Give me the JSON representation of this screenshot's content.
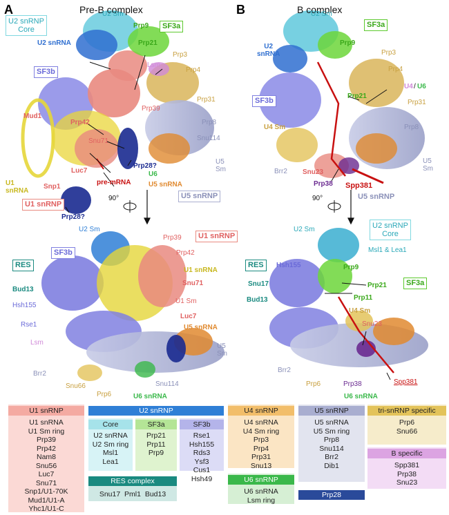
{
  "panels": {
    "a": {
      "letter": "A",
      "title": "Pre-B complex"
    },
    "b": {
      "letter": "B",
      "title": "B complex"
    }
  },
  "colors": {
    "u1": "#e98a80",
    "u2": "#2f7fd6",
    "u2core": "#7fd8e0",
    "sf3a": "#5cc92d",
    "sf3b": "#8080e0",
    "res": "#1a8a80",
    "u4": "#e0a030",
    "u5": "#a9aed0",
    "u6": "#3ab84a",
    "tri": "#e3c35a",
    "bspec": "#d07ad8",
    "prp28": "#2a4a9a",
    "u1rna": "#e5d63a",
    "mrna": "#c81010"
  },
  "labels_a_top": {
    "u2_core": "U2 snRNP\nCore",
    "u2_sm": "U2 Sm",
    "u2_snrna": "U2 snRNA",
    "prp9": "Prp9",
    "sf3a": "SF3a",
    "prp21": "Prp21",
    "prp3": "Prp3",
    "lsm": "Lsm",
    "sf3b": "SF3b",
    "prp4": "Prp4",
    "prp31": "Prp31",
    "prp39": "Prp39",
    "mud1": "Mud1",
    "prp42": "Prp42",
    "prp8": "Prp8",
    "snu71": "Snu71",
    "snu114": "Snu114",
    "prp28q1": "Prp28?",
    "luc7": "Luc7",
    "u5sm": "U5\nSm",
    "u6": "U6",
    "u1snrna": "U1\nsnRNA",
    "snp1": "Snp1",
    "premrna": "pre-mRNA",
    "u5snrna": "U5 snRNA",
    "u1snrnp": "U1 snRNP",
    "rot": "90°",
    "u5snrnp": "U5 snRNP",
    "prp28q2": "Prp28?"
  },
  "labels_a_bot": {
    "u2sm": "U2 Sm",
    "prp39": "Prp39",
    "u1snrnp": "U1 snRNP",
    "sf3b": "SF3b",
    "prp42": "Prp42",
    "res": "RES",
    "u1snrna": "U1 snRNA",
    "bud13": "Bud13",
    "snu71": "Snu71",
    "hsh155": "Hsh155",
    "u1sm": "U1 Sm",
    "rse1": "Rse1",
    "luc7": "Luc7",
    "u5snrna": "U5 snRNA",
    "lsm": "Lsm",
    "u5sm": "U5\nSm",
    "brr2": "Brr2",
    "snu66": "Snu66",
    "prp6": "Prp6",
    "snu114": "Snu114",
    "u6snrna": "U6 snRNA"
  },
  "labels_b_top": {
    "u2sm": "U2 Sm",
    "sf3a": "SF3a",
    "u2snrna": "U2\nsnRNA",
    "prp9": "Prp9",
    "prp3": "Prp3",
    "prp4": "Prp4",
    "u4": "U4",
    "slash": "/",
    "u6": "U6",
    "sf3b": "SF3b",
    "prp21": "Prp21",
    "prp31": "Prp31",
    "u4sm": "U4 Sm",
    "prp8": "Prp8",
    "u5sm": "U5\nSm",
    "brr2": "Brr2",
    "snu23": "Snu23",
    "prp38": "Prp38",
    "spp381": "Spp381",
    "rot": "90°",
    "u5snrnp": "U5 snRNP"
  },
  "labels_b_bot": {
    "u2sm": "U2 Sm",
    "u2core": "U2 snRNP\nCore",
    "msl1": "Msl1 & Lea1",
    "res": "RES",
    "hsh155": "Hsh155",
    "prp9": "Prp9",
    "snu17": "Snu17",
    "prp21": "Prp21",
    "sf3a": "SF3a",
    "bud13": "Bud13",
    "prp11": "Prp11",
    "u4sm": "U4 Sm",
    "snu23": "Snu23",
    "brr2": "Brr2",
    "prp6": "Prp6",
    "prp38": "Prp38",
    "spp381": "Spp381",
    "u6snrna": "U6 snRNA"
  },
  "legend": {
    "u1": {
      "header": "U1 snRNP",
      "items": [
        "U1 snRNA",
        "U1 Sm ring",
        "Prp39",
        "Prp42",
        "Nam8",
        "Snu56",
        "Luc7",
        "Snu71",
        "Snp1/U1-70K",
        "Mud1/U1-A",
        "Yhc1/U1-C"
      ]
    },
    "u2": {
      "header": "U2 snRNP"
    },
    "core": {
      "header": "Core",
      "items": [
        "U2 snRNA",
        "U2 Sm ring",
        "Msl1",
        "Lea1"
      ]
    },
    "sf3a": {
      "header": "SF3a",
      "items": [
        "Prp21",
        "Prp11",
        "Prp9"
      ]
    },
    "sf3b": {
      "header": "SF3b",
      "items": [
        "Rse1",
        "Hsh155",
        "Rds3",
        "Ysf3",
        "Cus1",
        "Hsh49"
      ]
    },
    "res": {
      "header": "RES complex",
      "items": [
        "Snu17",
        "Pml1",
        "Bud13"
      ]
    },
    "u4": {
      "header": "U4 snRNP",
      "items": [
        "U4 snRNA",
        "U4 Sm ring",
        "Prp3",
        "Prp4",
        "Prp31",
        "Snu13"
      ]
    },
    "u6": {
      "header": "U6 snRNP",
      "items": [
        "U6 snRNA",
        "Lsm ring"
      ]
    },
    "u5": {
      "header": "U5 snRNP",
      "items": [
        "U5 snRNA",
        "U5 Sm ring",
        "Prp8",
        "Snu114",
        "Brr2",
        "Dib1"
      ]
    },
    "prp28": {
      "header": "Prp28"
    },
    "tri": {
      "header": "tri-snRNP specific",
      "items": [
        "Prp6",
        "Snu66"
      ]
    },
    "bspec": {
      "header": "B specific",
      "items": [
        "Spp381",
        "Prp38",
        "Snu23"
      ]
    }
  }
}
